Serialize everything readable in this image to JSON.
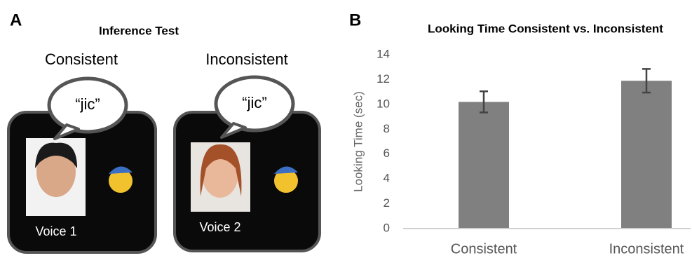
{
  "panel_a": {
    "letter": "A",
    "title": "Inference Test",
    "conditions": [
      {
        "label": "Consistent",
        "speech": "“jic”",
        "voice": "Voice 1"
      },
      {
        "label": "Inconsistent",
        "speech": "“jic”",
        "voice": "Voice 2"
      }
    ]
  },
  "chart_data": {
    "type": "bar",
    "letter": "B",
    "title": "Looking Time Consistent vs. Inconsistent",
    "y_label": "Looking Time (sec)",
    "categories": [
      "Consistent",
      "Inconsistent"
    ],
    "values": [
      10.2,
      11.9
    ],
    "errors": [
      0.85,
      0.95
    ],
    "color": "#808080",
    "ylim": [
      0,
      14
    ],
    "yticks": [
      0,
      2,
      4,
      6,
      8,
      10,
      12,
      14
    ],
    "grid": false
  }
}
